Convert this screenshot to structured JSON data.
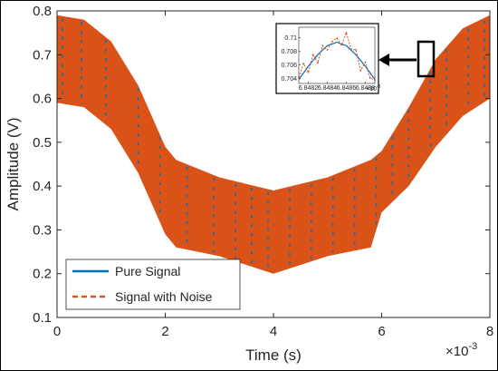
{
  "chart_data": {
    "type": "line",
    "xlabel": "Time (s)",
    "ylabel": "Amplitude (V)",
    "xlim": [
      0,
      0.008
    ],
    "ylim": [
      0.1,
      0.8
    ],
    "x_ticks": [
      "0",
      "2",
      "4",
      "6",
      "8"
    ],
    "y_ticks": [
      "0.1",
      "0.2",
      "0.3",
      "0.4",
      "0.5",
      "0.6",
      "0.7",
      "0.8"
    ],
    "x_exponent": "×10",
    "x_exponent_power": "-3",
    "grid": false,
    "legend_placement": "bottom-left",
    "series": [
      {
        "name": "Pure Signal",
        "color": "#0072BD",
        "style": "solid",
        "envelope": {
          "x": [
            0,
            0.0005,
            0.001,
            0.0015,
            0.002,
            0.0022,
            0.003,
            0.004,
            0.005,
            0.0058,
            0.006,
            0.0065,
            0.007,
            0.0075,
            0.008
          ],
          "upper": [
            0.79,
            0.78,
            0.73,
            0.63,
            0.49,
            0.46,
            0.42,
            0.39,
            0.42,
            0.46,
            0.48,
            0.58,
            0.69,
            0.76,
            0.79
          ],
          "lower": [
            0.59,
            0.58,
            0.53,
            0.43,
            0.29,
            0.26,
            0.24,
            0.2,
            0.24,
            0.26,
            0.34,
            0.4,
            0.49,
            0.56,
            0.6
          ]
        }
      },
      {
        "name": "Signal with Noise",
        "color": "#D95319",
        "style": "dashed"
      }
    ],
    "inset": {
      "x_ticks": [
        "6.8482",
        "6.8484",
        "6.8486",
        "6.8488"
      ],
      "y_ticks": [
        "0.704",
        "0.706",
        "0.708",
        "0.71"
      ],
      "x_exponent": "×10",
      "x_exponent_power": "-3",
      "xlim": [
        6.8481,
        6.8489
      ],
      "ylim": [
        0.7033,
        0.7115
      ],
      "pure": {
        "x": [
          6.8481,
          6.8482,
          6.8483,
          6.8484,
          6.8485,
          6.8486,
          6.8487,
          6.8488,
          6.8489
        ],
        "y": [
          0.7039,
          0.7058,
          0.7075,
          0.7088,
          0.7093,
          0.7088,
          0.7075,
          0.7058,
          0.7039
        ]
      },
      "noisy": {
        "x": [
          6.8481,
          6.84815,
          6.8482,
          6.84825,
          6.8483,
          6.84835,
          6.8484,
          6.84845,
          6.8485,
          6.84855,
          6.8486,
          6.84865,
          6.8487,
          6.84875,
          6.8488,
          6.84885,
          6.8489
        ],
        "y": [
          0.7042,
          0.7062,
          0.7049,
          0.7075,
          0.7063,
          0.7088,
          0.7082,
          0.7094,
          0.7099,
          0.7089,
          0.7107,
          0.7083,
          0.7082,
          0.7052,
          0.7064,
          0.7041,
          0.7038
        ]
      }
    }
  }
}
